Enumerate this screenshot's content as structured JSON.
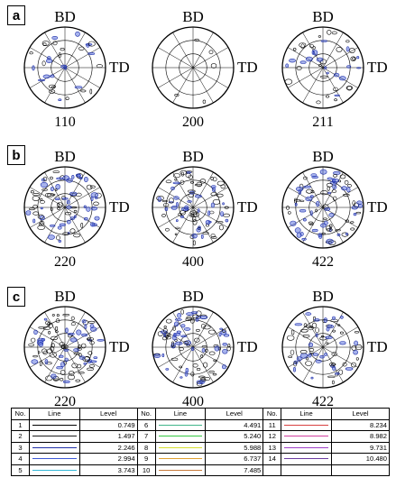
{
  "panels": [
    {
      "label": "a",
      "planes": [
        "110",
        "200",
        "211"
      ]
    },
    {
      "label": "b",
      "planes": [
        "220",
        "400",
        "422"
      ]
    },
    {
      "label": "c",
      "planes": [
        "220",
        "400",
        "422"
      ]
    }
  ],
  "axis_labels": {
    "bd": "BD",
    "td": "TD"
  },
  "legend": {
    "headers": {
      "no": "No.",
      "line": "Line",
      "level": "Level"
    },
    "entries": [
      {
        "no": "1",
        "level": "0.749",
        "color": "#000000"
      },
      {
        "no": "2",
        "level": "1.497",
        "color": "#1c1c1c"
      },
      {
        "no": "3",
        "level": "2.246",
        "color": "#1f2fa8"
      },
      {
        "no": "4",
        "level": "2.994",
        "color": "#3b57d6"
      },
      {
        "no": "5",
        "level": "3.743",
        "color": "#35b8d8"
      },
      {
        "no": "6",
        "level": "4.491",
        "color": "#3fb58a"
      },
      {
        "no": "7",
        "level": "5.240",
        "color": "#35c842"
      },
      {
        "no": "8",
        "level": "5.988",
        "color": "#d7e030"
      },
      {
        "no": "9",
        "level": "6.737",
        "color": "#e0a030"
      },
      {
        "no": "10",
        "level": "7.485",
        "color": "#c87a3a"
      },
      {
        "no": "11",
        "level": "8.234",
        "color": "#d84040"
      },
      {
        "no": "12",
        "level": "8.982",
        "color": "#d040a0"
      },
      {
        "no": "13",
        "level": "9.731",
        "color": "#a040c8"
      },
      {
        "no": "14",
        "level": "10.480",
        "color": "#6a3aa0"
      }
    ]
  }
}
